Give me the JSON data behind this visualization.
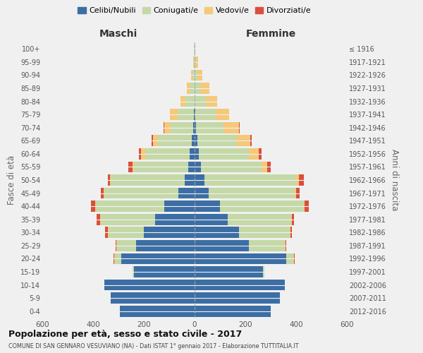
{
  "age_groups": [
    "0-4",
    "5-9",
    "10-14",
    "15-19",
    "20-24",
    "25-29",
    "30-34",
    "35-39",
    "40-44",
    "45-49",
    "50-54",
    "55-59",
    "60-64",
    "65-69",
    "70-74",
    "75-79",
    "80-84",
    "85-89",
    "90-94",
    "95-99",
    "100+"
  ],
  "birth_years": [
    "2012-2016",
    "2007-2011",
    "2002-2006",
    "1997-2001",
    "1992-1996",
    "1987-1991",
    "1982-1986",
    "1977-1981",
    "1972-1976",
    "1967-1971",
    "1962-1966",
    "1957-1961",
    "1952-1956",
    "1947-1951",
    "1942-1946",
    "1937-1941",
    "1932-1936",
    "1927-1931",
    "1922-1926",
    "1917-1921",
    "≤ 1916"
  ],
  "male": {
    "celibi": [
      295,
      330,
      355,
      240,
      290,
      230,
      200,
      155,
      120,
      65,
      40,
      25,
      20,
      10,
      5,
      2,
      0,
      0,
      0,
      0,
      0
    ],
    "coniugati": [
      0,
      0,
      0,
      5,
      25,
      75,
      140,
      215,
      270,
      290,
      290,
      215,
      175,
      135,
      90,
      65,
      35,
      18,
      8,
      3,
      2
    ],
    "vedovi": [
      0,
      0,
      0,
      0,
      2,
      2,
      2,
      2,
      2,
      2,
      3,
      5,
      15,
      20,
      25,
      30,
      20,
      12,
      5,
      2,
      0
    ],
    "divorziati": [
      0,
      0,
      0,
      0,
      3,
      5,
      10,
      15,
      15,
      12,
      10,
      15,
      10,
      5,
      2,
      0,
      0,
      0,
      0,
      0,
      0
    ]
  },
  "female": {
    "nubili": [
      300,
      335,
      355,
      270,
      360,
      215,
      175,
      130,
      100,
      55,
      40,
      25,
      18,
      10,
      5,
      2,
      0,
      0,
      0,
      0,
      0
    ],
    "coniugate": [
      0,
      0,
      0,
      5,
      30,
      140,
      200,
      250,
      330,
      340,
      360,
      240,
      195,
      155,
      110,
      80,
      45,
      22,
      12,
      5,
      2
    ],
    "vedove": [
      0,
      0,
      0,
      0,
      2,
      2,
      2,
      2,
      3,
      5,
      10,
      20,
      40,
      55,
      60,
      55,
      45,
      35,
      18,
      8,
      1
    ],
    "divorziate": [
      0,
      0,
      0,
      0,
      2,
      3,
      5,
      10,
      18,
      15,
      20,
      15,
      10,
      5,
      2,
      0,
      0,
      0,
      0,
      0,
      0
    ]
  },
  "colors": {
    "celibi": "#3c6ea5",
    "coniugati": "#c5d9a8",
    "vedovi": "#f5c97a",
    "divorziati": "#d94f3d"
  },
  "xlim": 600,
  "title": "Popolazione per età, sesso e stato civile - 2017",
  "subtitle": "COMUNE DI SAN GENNARO VESUVIANO (NA) - Dati ISTAT 1° gennaio 2017 - Elaborazione TUTTITALIA.IT",
  "ylabel_left": "Fasce di età",
  "ylabel_right": "Anni di nascita",
  "xlabel_maschi": "Maschi",
  "xlabel_femmine": "Femmine",
  "legend_labels": [
    "Celibi/Nubili",
    "Coniugati/e",
    "Vedovi/e",
    "Divorziati/e"
  ],
  "bg_color": "#f0f0f0",
  "bar_height": 0.85
}
